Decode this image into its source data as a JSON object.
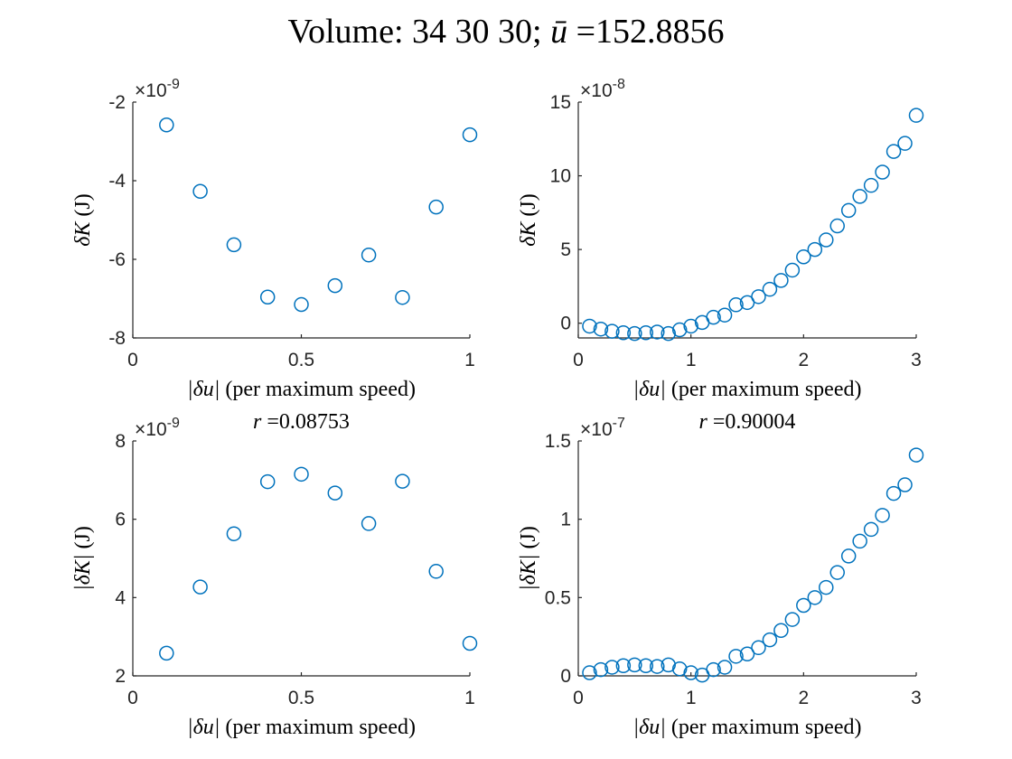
{
  "figure": {
    "title_prefix": "Volume: 34 30 30; ",
    "title_symbol": "ū",
    "title_suffix": " =152.8856",
    "marker_color": "#0072BD"
  },
  "chart_data": [
    {
      "type": "scatter",
      "panel": "top-left",
      "title": "",
      "xlabel_math": "|δu|",
      "xlabel_text": " (per maximum speed)",
      "ylabel_math": "δK",
      "ylabel_text": " (J)",
      "xlim": [
        0,
        1
      ],
      "ylim": [
        -8e-09,
        -2e-09
      ],
      "xticks": [
        0,
        0.5,
        1
      ],
      "xtick_labels": [
        "0",
        "0.5",
        "1"
      ],
      "yticks": [
        -8e-09,
        -6e-09,
        -4e-09,
        -2e-09
      ],
      "ytick_labels": [
        "-8",
        "-6",
        "-4",
        "-2"
      ],
      "exponent_base": "×10",
      "exponent": "-9",
      "x": [
        0.1,
        0.2,
        0.3,
        0.4,
        0.5,
        0.6,
        0.7,
        0.8,
        0.9,
        1.0
      ],
      "y": [
        -2.58e-09,
        -4.27e-09,
        -5.63e-09,
        -6.96e-09,
        -7.15e-09,
        -6.67e-09,
        -5.89e-09,
        -6.97e-09,
        -4.67e-09,
        -2.83e-09
      ]
    },
    {
      "type": "scatter",
      "panel": "top-right",
      "title": "",
      "xlabel_math": "|δu|",
      "xlabel_text": " (per maximum speed)",
      "ylabel_math": "δK",
      "ylabel_text": " (J)",
      "xlim": [
        0,
        3
      ],
      "ylim": [
        -1e-08,
        1.5e-07
      ],
      "xticks": [
        0,
        1,
        2,
        3
      ],
      "xtick_labels": [
        "0",
        "1",
        "2",
        "3"
      ],
      "yticks": [
        0,
        5e-08,
        1e-07,
        1.5e-07
      ],
      "ytick_labels": [
        "0",
        "5",
        "10",
        "15"
      ],
      "exponent_base": "×10",
      "exponent": "-8",
      "x": [
        0.1,
        0.2,
        0.3,
        0.4,
        0.5,
        0.6,
        0.7,
        0.8,
        0.9,
        1.0,
        1.1,
        1.2,
        1.3,
        1.4,
        1.5,
        1.6,
        1.7,
        1.8,
        1.9,
        2.0,
        2.1,
        2.2,
        2.3,
        2.4,
        2.5,
        2.6,
        2.7,
        2.8,
        2.9,
        3.0
      ],
      "y": [
        -2e-09,
        -4e-09,
        -5.5e-09,
        -6.5e-09,
        -7e-09,
        -6.5e-09,
        -6e-09,
        -7e-09,
        -4.5e-09,
        -2e-09,
        5e-10,
        4e-09,
        5.5e-09,
        1.25e-08,
        1.4e-08,
        1.8e-08,
        2.3e-08,
        2.9e-08,
        3.6e-08,
        4.5e-08,
        5e-08,
        5.65e-08,
        6.6e-08,
        7.65e-08,
        8.6e-08,
        9.35e-08,
        1.025e-07,
        1.165e-07,
        1.22e-07,
        1.41e-07
      ]
    },
    {
      "type": "scatter",
      "panel": "bottom-left",
      "title_symbol": "r",
      "title_value": " =0.08753",
      "xlabel_math": "|δu|",
      "xlabel_text": " (per maximum speed)",
      "ylabel_math": "|δK|",
      "ylabel_text": " (J)",
      "xlim": [
        0,
        1
      ],
      "ylim": [
        2e-09,
        8e-09
      ],
      "xticks": [
        0,
        0.5,
        1
      ],
      "xtick_labels": [
        "0",
        "0.5",
        "1"
      ],
      "yticks": [
        2e-09,
        4e-09,
        6e-09,
        8e-09
      ],
      "ytick_labels": [
        "2",
        "4",
        "6",
        "8"
      ],
      "exponent_base": "×10",
      "exponent": "-9",
      "x": [
        0.1,
        0.2,
        0.3,
        0.4,
        0.5,
        0.6,
        0.7,
        0.8,
        0.9,
        1.0
      ],
      "y": [
        2.58e-09,
        4.27e-09,
        5.63e-09,
        6.96e-09,
        7.15e-09,
        6.67e-09,
        5.89e-09,
        6.97e-09,
        4.67e-09,
        2.83e-09
      ]
    },
    {
      "type": "scatter",
      "panel": "bottom-right",
      "title_symbol": "r",
      "title_value": " =0.90004",
      "xlabel_math": "|δu|",
      "xlabel_text": " (per maximum speed)",
      "ylabel_math": "|δK|",
      "ylabel_text": " (J)",
      "xlim": [
        0,
        3
      ],
      "ylim": [
        0,
        1.5e-07
      ],
      "xticks": [
        0,
        1,
        2,
        3
      ],
      "xtick_labels": [
        "0",
        "1",
        "2",
        "3"
      ],
      "yticks": [
        0,
        5e-08,
        1e-07,
        1.5e-07
      ],
      "ytick_labels": [
        "0",
        "0.5",
        "1",
        "1.5"
      ],
      "exponent_base": "×10",
      "exponent": "-7",
      "x": [
        0.1,
        0.2,
        0.3,
        0.4,
        0.5,
        0.6,
        0.7,
        0.8,
        0.9,
        1.0,
        1.1,
        1.2,
        1.3,
        1.4,
        1.5,
        1.6,
        1.7,
        1.8,
        1.9,
        2.0,
        2.1,
        2.2,
        2.3,
        2.4,
        2.5,
        2.6,
        2.7,
        2.8,
        2.9,
        3.0
      ],
      "y": [
        2e-09,
        4e-09,
        5.5e-09,
        6.5e-09,
        7e-09,
        6.5e-09,
        6e-09,
        7e-09,
        4.5e-09,
        2e-09,
        5e-10,
        4e-09,
        5.5e-09,
        1.25e-08,
        1.4e-08,
        1.8e-08,
        2.3e-08,
        2.9e-08,
        3.6e-08,
        4.5e-08,
        5e-08,
        5.65e-08,
        6.6e-08,
        7.65e-08,
        8.6e-08,
        9.35e-08,
        1.025e-07,
        1.165e-07,
        1.22e-07,
        1.41e-07
      ]
    }
  ]
}
